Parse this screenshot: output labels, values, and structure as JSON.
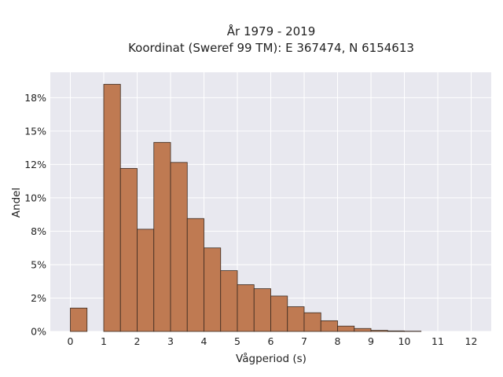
{
  "chart_data": {
    "type": "bar",
    "title_lines": [
      "År 1979 - 2019",
      "Koordinat (Sweref 99 TM): E 367474, N 6154613"
    ],
    "xlabel": "Vågperiod (s)",
    "ylabel": "Andel",
    "x_ticks": [
      0,
      1,
      2,
      3,
      4,
      5,
      6,
      7,
      8,
      9,
      10,
      11,
      12
    ],
    "x_tick_labels": [
      "0",
      "1",
      "2",
      "3",
      "4",
      "5",
      "6",
      "7",
      "8",
      "9",
      "10",
      "11",
      "12"
    ],
    "y_ticks": [
      0,
      0.025,
      0.05,
      0.075,
      0.1,
      0.125,
      0.15,
      0.175
    ],
    "y_tick_labels": [
      "0%",
      "2%",
      "5%",
      "8%",
      "10%",
      "12%",
      "15%",
      "18%"
    ],
    "xlim": [
      -0.6,
      12.6
    ],
    "ylim": [
      0,
      0.194
    ],
    "bin_width": 0.5,
    "bars": [
      {
        "x": 0.0,
        "value": 0.0175
      },
      {
        "x": 1.0,
        "value": 0.185
      },
      {
        "x": 1.5,
        "value": 0.122
      },
      {
        "x": 2.0,
        "value": 0.0765
      },
      {
        "x": 2.5,
        "value": 0.1415
      },
      {
        "x": 3.0,
        "value": 0.1265
      },
      {
        "x": 3.5,
        "value": 0.0845
      },
      {
        "x": 4.0,
        "value": 0.0625
      },
      {
        "x": 4.5,
        "value": 0.0455
      },
      {
        "x": 5.0,
        "value": 0.035
      },
      {
        "x": 5.5,
        "value": 0.032
      },
      {
        "x": 6.0,
        "value": 0.0265
      },
      {
        "x": 6.5,
        "value": 0.0185
      },
      {
        "x": 7.0,
        "value": 0.014
      },
      {
        "x": 7.5,
        "value": 0.008
      },
      {
        "x": 8.0,
        "value": 0.004
      },
      {
        "x": 8.5,
        "value": 0.0022
      },
      {
        "x": 9.0,
        "value": 0.0008
      },
      {
        "x": 9.5,
        "value": 0.0004
      },
      {
        "x": 10.0,
        "value": 0.0002
      }
    ],
    "bar_color": "#bf7a52",
    "plot_background": "#e8e8ef",
    "grid": true,
    "legend": false
  }
}
